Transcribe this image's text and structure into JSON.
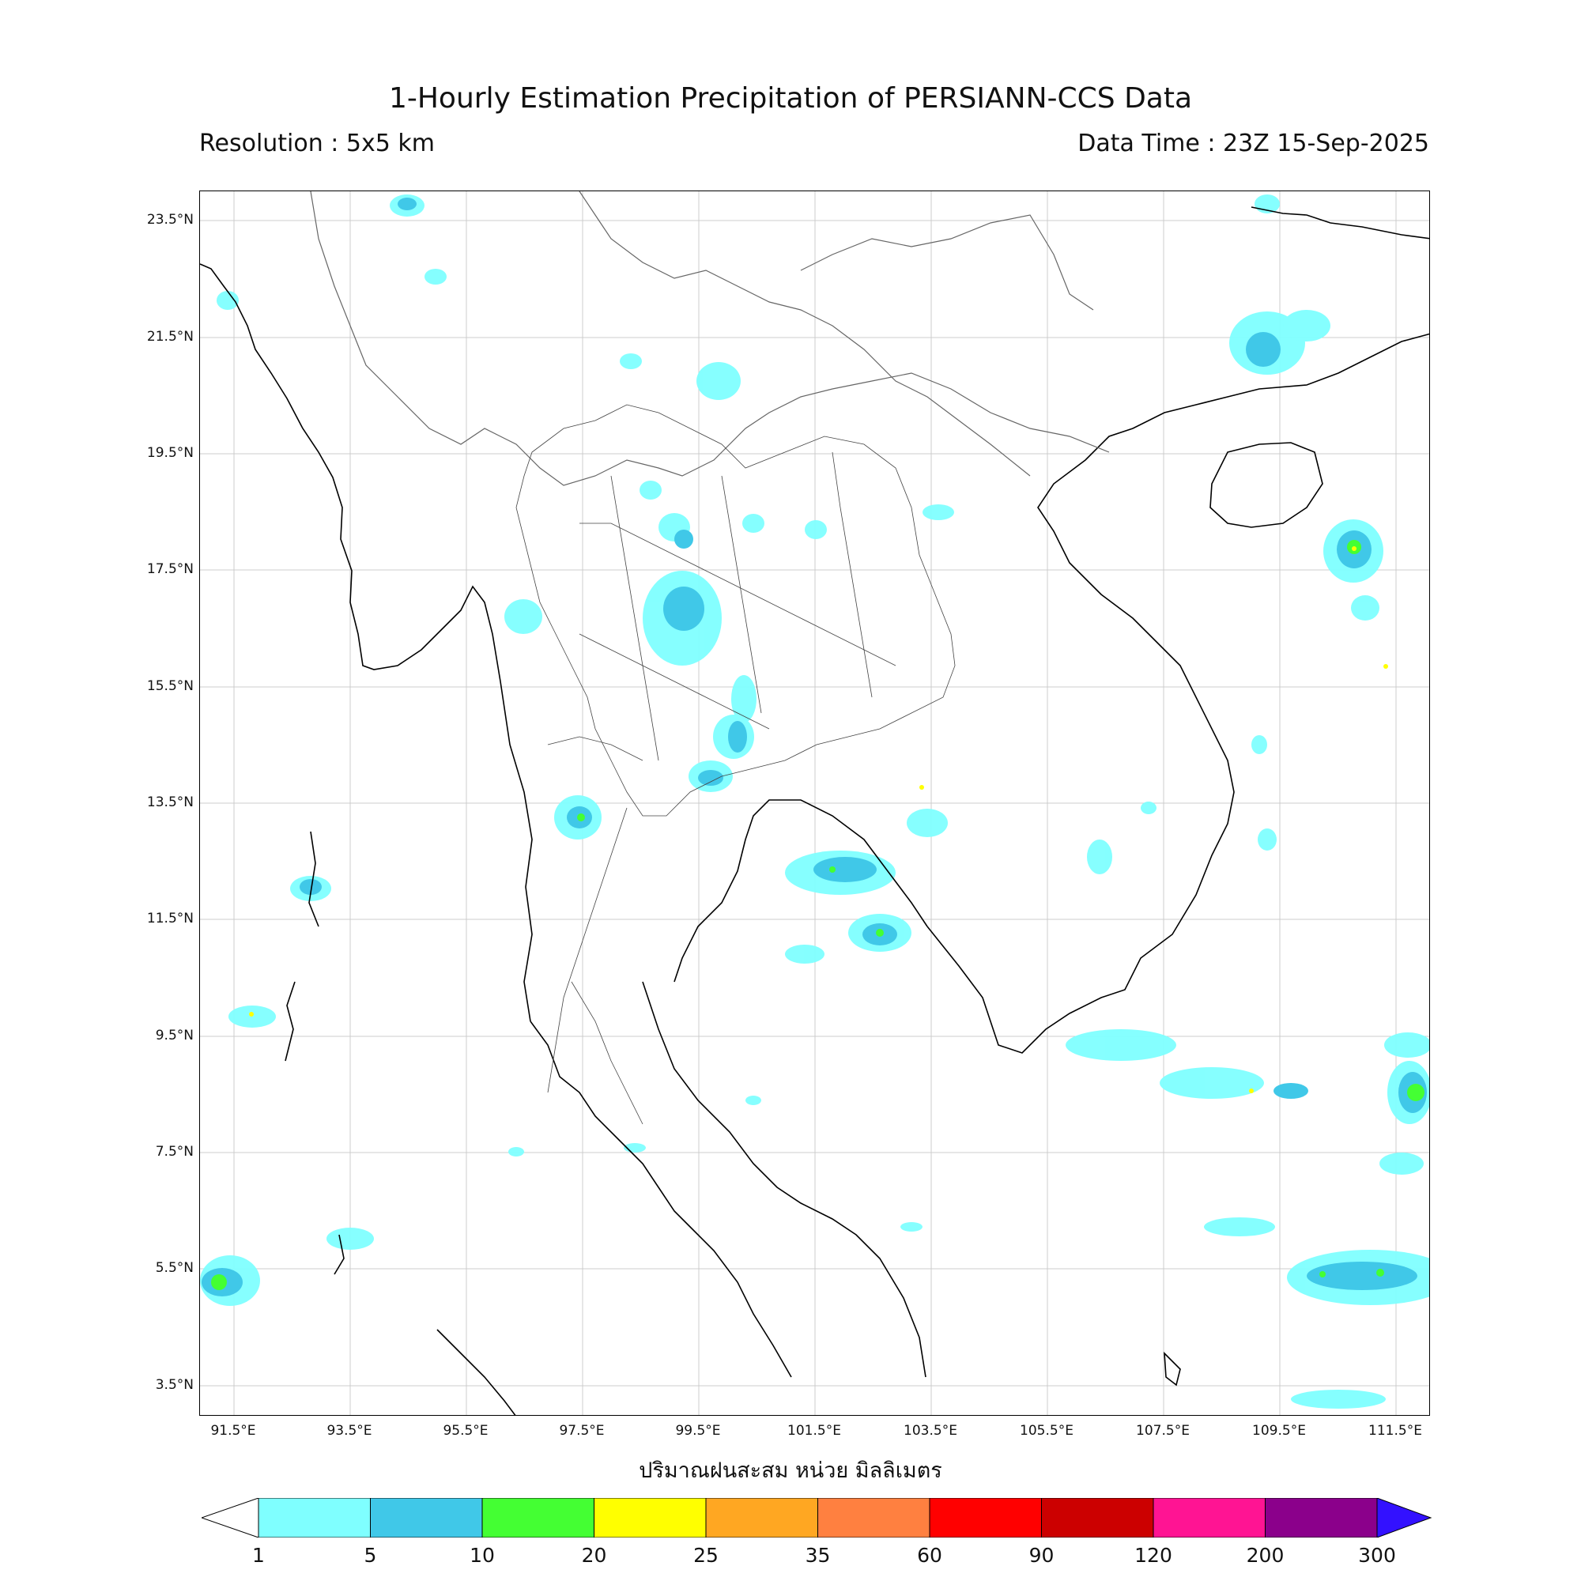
{
  "header": {
    "title": "1-Hourly Estimation Precipitation of PERSIANN-CCS Data",
    "resolution": "Resolution : 5x5 km",
    "data_time": "Data Time : 23Z 15-Sep-2025"
  },
  "map": {
    "lat_labels": [
      "23.5°N",
      "21.5°N",
      "19.5°N",
      "17.5°N",
      "15.5°N",
      "13.5°N",
      "11.5°N",
      "9.5°N",
      "7.5°N",
      "5.5°N",
      "3.5°N"
    ],
    "lon_labels": [
      "91.5°E",
      "93.5°E",
      "95.5°E",
      "97.5°E",
      "99.5°E",
      "101.5°E",
      "103.5°E",
      "105.5°E",
      "107.5°E",
      "109.5°E",
      "111.5°E"
    ],
    "xlabel": "ปริมาณฝนสะสม หน่วย มิลลิเมตร",
    "rain_colors": {
      "light": "#7fffff",
      "moderate": "#40c8e8",
      "heavy": "#44ff33",
      "very_heavy": "#ffff00"
    }
  },
  "colorbar": {
    "ticks": [
      "1",
      "5",
      "10",
      "20",
      "25",
      "35",
      "60",
      "90",
      "120",
      "200",
      "300"
    ],
    "colors": [
      "#7fffff",
      "#40c8e8",
      "#44ff33",
      "#ffff00",
      "#ffa722",
      "#ff8040",
      "#ff0000",
      "#cc0000",
      "#ff1493",
      "#8b008b"
    ],
    "extend_max_color": "#3311ff"
  }
}
